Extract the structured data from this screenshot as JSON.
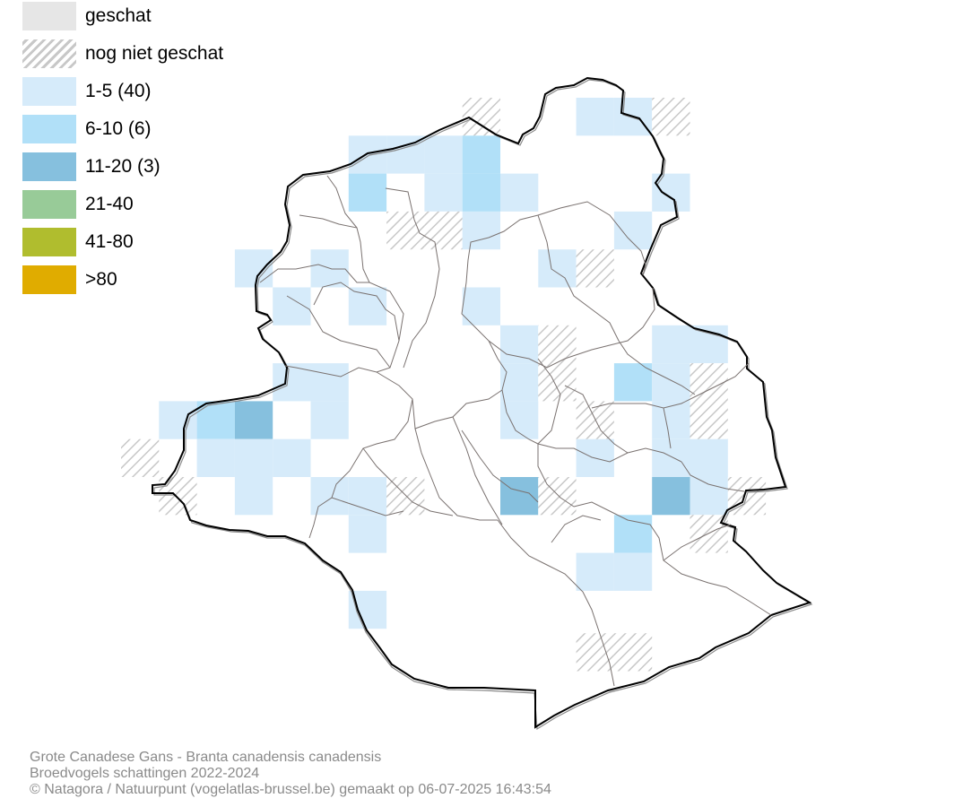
{
  "legend": [
    {
      "label": "geschat",
      "color": "#e6e6e6",
      "pattern": "solid"
    },
    {
      "label": "nog niet geschat",
      "color": "#c8c8c8",
      "pattern": "hatched"
    },
    {
      "label": "1-5 (40)",
      "color": "#d6ebfa",
      "pattern": "solid"
    },
    {
      "label": "6-10 (6)",
      "color": "#b1e0f8",
      "pattern": "solid"
    },
    {
      "label": "11-20 (3)",
      "color": "#86c0de",
      "pattern": "solid"
    },
    {
      "label": "21-40",
      "color": "#98cb98",
      "pattern": "solid"
    },
    {
      "label": "41-80",
      "color": "#b0bd2e",
      "pattern": "solid"
    },
    {
      "label": ">80",
      "color": "#e0ac00",
      "pattern": "solid"
    }
  ],
  "caption": {
    "line1": "Grote Canadese Gans - Branta canadensis canadensis",
    "line2": "Broedvogels schattingen 2022-2024",
    "line3": "© Natagora / Natuurpunt (vogelatlas-brussel.be) gemaakt op 06-07-2025 16:43:54"
  },
  "colors": {
    "outline": "#000000",
    "municipal_border": "#7a7270",
    "hatch": "#c8c8c8",
    "caption_text": "#8a8a8a"
  }
}
